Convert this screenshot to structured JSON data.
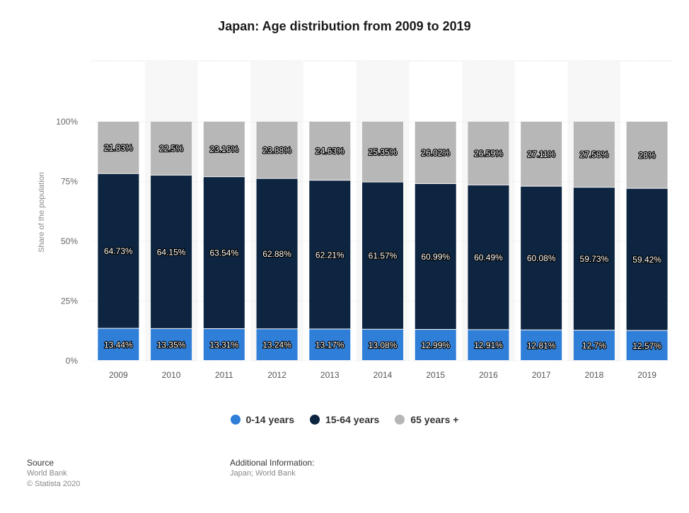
{
  "chart_data": {
    "type": "bar",
    "stacked": true,
    "title": "Japan: Age distribution from 2009 to 2019",
    "ylabel": "Share of the population",
    "xlabel": "",
    "ylim": [
      0,
      100
    ],
    "yticks": [
      "0%",
      "25%",
      "50%",
      "75%",
      "100%"
    ],
    "categories": [
      "2009",
      "2010",
      "2011",
      "2012",
      "2013",
      "2014",
      "2015",
      "2016",
      "2017",
      "2018",
      "2019"
    ],
    "series": [
      {
        "name": "0-14 years",
        "color": "#2f7ed8",
        "values": [
          13.44,
          13.35,
          13.31,
          13.24,
          13.17,
          13.08,
          12.99,
          12.91,
          12.81,
          12.7,
          12.57
        ],
        "labels": [
          "13.44%",
          "13.35%",
          "13.31%",
          "13.24%",
          "13.17%",
          "13.08%",
          "12.99%",
          "12.91%",
          "12.81%",
          "12.7%",
          "12.57%"
        ]
      },
      {
        "name": "15-64 years",
        "color": "#0d2540",
        "values": [
          64.73,
          64.15,
          63.54,
          62.88,
          62.21,
          61.57,
          60.99,
          60.49,
          60.08,
          59.73,
          59.42
        ],
        "labels": [
          "64.73%",
          "64.15%",
          "63.54%",
          "62.88%",
          "62.21%",
          "61.57%",
          "60.99%",
          "60.49%",
          "60.08%",
          "59.73%",
          "59.42%"
        ]
      },
      {
        "name": "65 years +",
        "color": "#b7b7b7",
        "values": [
          21.83,
          22.5,
          23.16,
          23.88,
          24.63,
          25.35,
          26.02,
          26.59,
          27.11,
          27.58,
          28.0
        ],
        "labels": [
          "21.83%",
          "22.5%",
          "23.16%",
          "23.88%",
          "24.63%",
          "25.35%",
          "26.02%",
          "26.59%",
          "27.11%",
          "27.58%",
          "28%"
        ]
      }
    ],
    "legend": "bottom-center",
    "grid": true
  },
  "footer": {
    "source_label": "Source",
    "source_lines": [
      "World Bank",
      "© Statista 2020"
    ],
    "info_label": "Additional Information:",
    "info_lines": [
      "Japan; World Bank"
    ]
  }
}
